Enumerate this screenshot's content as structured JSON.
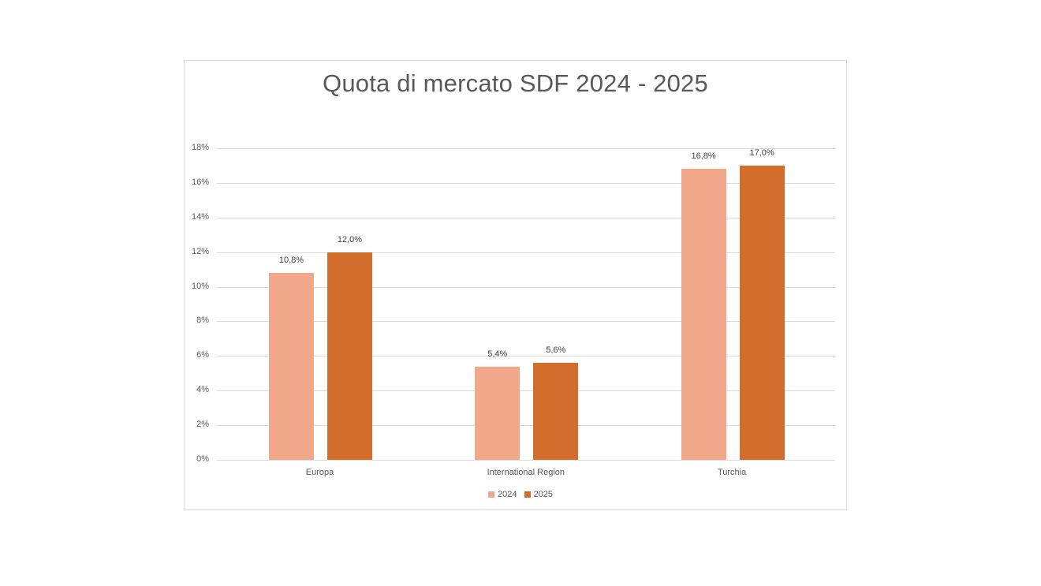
{
  "chart_data": {
    "type": "bar",
    "title": "Quota di mercato SDF 2024 - 2025",
    "xlabel": "",
    "ylabel": "",
    "categories": [
      "Europa",
      "International Region",
      "Turchia"
    ],
    "series": [
      {
        "name": "2024",
        "color": "#f1a78a",
        "values": [
          10.8,
          5.4,
          16.8
        ],
        "labels": [
          "10,8%",
          "5,4%",
          "16,8%"
        ]
      },
      {
        "name": "2025",
        "color": "#d26d2b",
        "values": [
          12.0,
          5.6,
          17.0
        ],
        "labels": [
          "12,0%",
          "5,6%",
          "17,0%"
        ]
      }
    ],
    "ylim": [
      0,
      18
    ],
    "yticks": [
      "0%",
      "2%",
      "4%",
      "6%",
      "8%",
      "10%",
      "12%",
      "14%",
      "16%",
      "18%"
    ],
    "grid": true,
    "legend_position": "bottom"
  }
}
